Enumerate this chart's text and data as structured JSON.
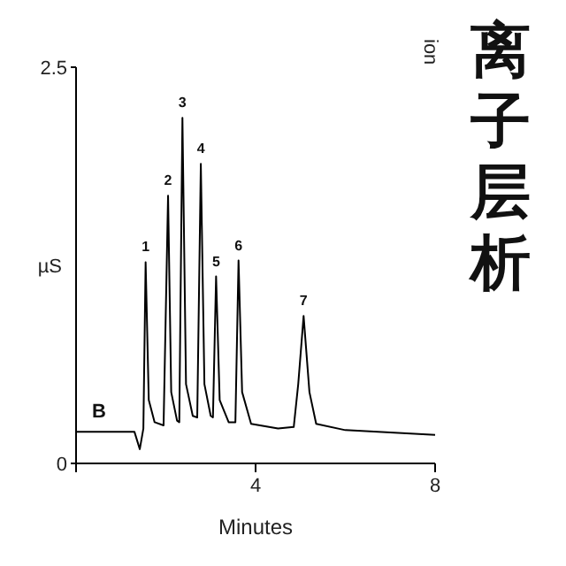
{
  "chart_data": {
    "type": "line",
    "title": "离子层析",
    "subtitle": "ion",
    "xlabel": "Minutes",
    "ylabel": "µS",
    "x": [
      0,
      1.3,
      1.42,
      1.5,
      1.55,
      1.62,
      1.75,
      1.95,
      2.05,
      2.12,
      2.25,
      2.3,
      2.37,
      2.45,
      2.6,
      2.7,
      2.78,
      2.86,
      3.0,
      3.05,
      3.12,
      3.2,
      3.4,
      3.55,
      3.62,
      3.7,
      3.9,
      4.5,
      4.85,
      4.95,
      5.07,
      5.2,
      5.35,
      6,
      8
    ],
    "series": [
      {
        "color": "#000000",
        "values": [
          0.2,
          0.2,
          0.09,
          0.22,
          1.27,
          0.4,
          0.26,
          0.24,
          1.69,
          0.45,
          0.27,
          0.26,
          2.18,
          0.5,
          0.3,
          0.29,
          1.89,
          0.5,
          0.3,
          0.29,
          1.18,
          0.4,
          0.26,
          0.26,
          1.28,
          0.45,
          0.25,
          0.22,
          0.23,
          0.5,
          0.93,
          0.45,
          0.25,
          0.21,
          0.18
        ]
      }
    ],
    "xlim": [
      0,
      8
    ],
    "ylim": [
      0,
      2.5
    ],
    "xticks": [
      {
        "value": 0,
        "label": null
      },
      4,
      8
    ],
    "yticks": [
      0,
      2.5
    ],
    "annotations": [
      {
        "text": "1",
        "x": 1.55,
        "y": 1.27
      },
      {
        "text": "2",
        "x": 2.05,
        "y": 1.69
      },
      {
        "text": "3",
        "x": 2.37,
        "y": 2.18
      },
      {
        "text": "4",
        "x": 2.78,
        "y": 1.89
      },
      {
        "text": "5",
        "x": 3.12,
        "y": 1.18
      },
      {
        "text": "6",
        "x": 3.62,
        "y": 1.28
      },
      {
        "text": "7",
        "x": 5.07,
        "y": 0.93
      },
      "B"
    ],
    "grid": false,
    "marker": "none",
    "line_style": "solid"
  }
}
